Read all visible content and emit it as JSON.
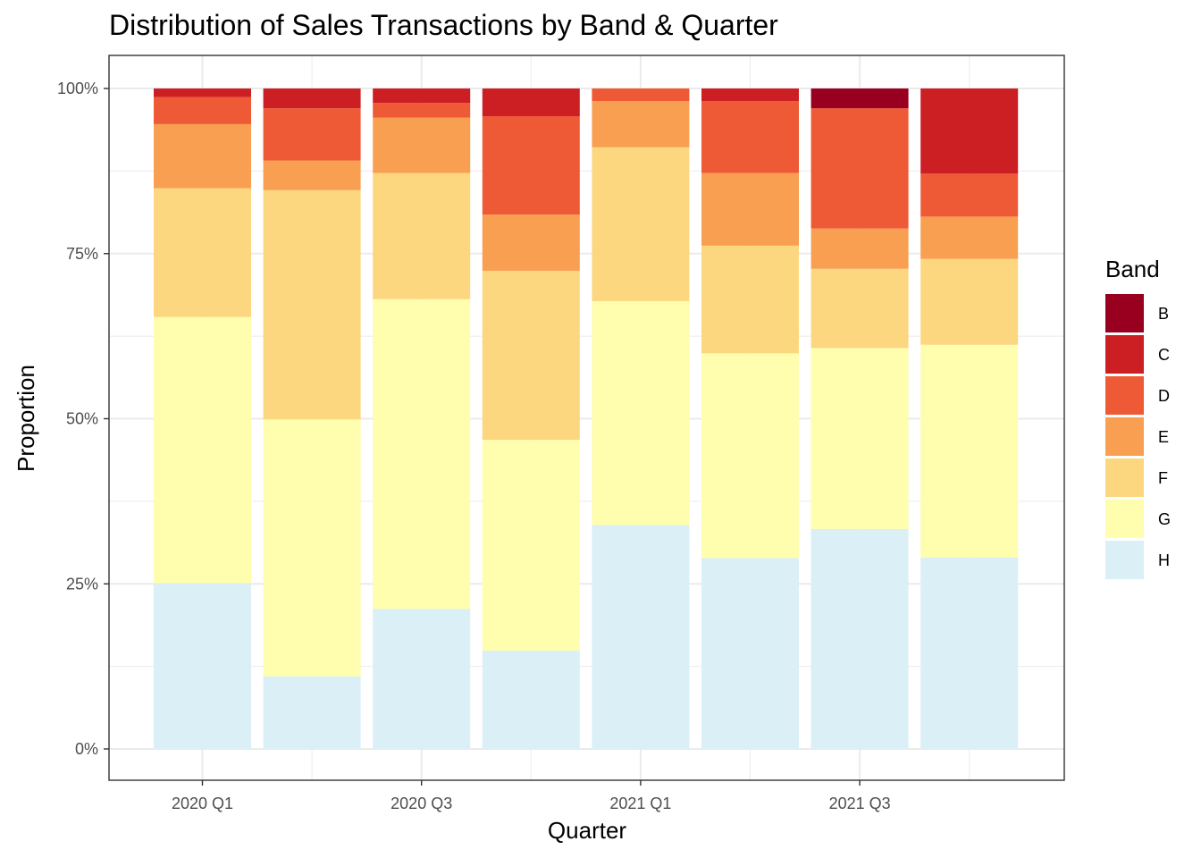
{
  "chart_data": {
    "type": "bar",
    "stacked": true,
    "normalized": true,
    "title": "Distribution of Sales Transactions by Band & Quarter",
    "xlabel": "Quarter",
    "ylabel": "Proportion",
    "ylim": [
      0,
      1
    ],
    "y_ticks": [
      "0%",
      "25%",
      "50%",
      "75%",
      "100%"
    ],
    "x_tick_labels": [
      "2020 Q1",
      "",
      "2020 Q3",
      "",
      "2021 Q1",
      "",
      "2021 Q3",
      ""
    ],
    "grid": true,
    "legend_position": "right",
    "legend_title": "Band",
    "series": [
      {
        "name": "B",
        "color": "#990020",
        "values": [
          0,
          0,
          0,
          0,
          0,
          0,
          0.03,
          0
        ]
      },
      {
        "name": "C",
        "color": "#CC1F23",
        "values": [
          0.013,
          0.03,
          0.022,
          0.042,
          0,
          0.019,
          0,
          0.129
        ]
      },
      {
        "name": "D",
        "color": "#EF5A36",
        "values": [
          0.041,
          0.079,
          0.022,
          0.149,
          0.019,
          0.109,
          0.182,
          0.065
        ]
      },
      {
        "name": "E",
        "color": "#F99F52",
        "values": [
          0.097,
          0.045,
          0.084,
          0.085,
          0.07,
          0.11,
          0.061,
          0.064
        ]
      },
      {
        "name": "F",
        "color": "#FCD77F",
        "values": [
          0.195,
          0.347,
          0.191,
          0.256,
          0.233,
          0.163,
          0.12,
          0.13
        ]
      },
      {
        "name": "G",
        "color": "#FEFEAE",
        "values": [
          0.403,
          0.389,
          0.469,
          0.319,
          0.339,
          0.31,
          0.274,
          0.322
        ]
      },
      {
        "name": "H",
        "color": "#DAEFF6",
        "values": [
          0.251,
          0.11,
          0.212,
          0.149,
          0.339,
          0.289,
          0.333,
          0.29
        ]
      }
    ]
  }
}
